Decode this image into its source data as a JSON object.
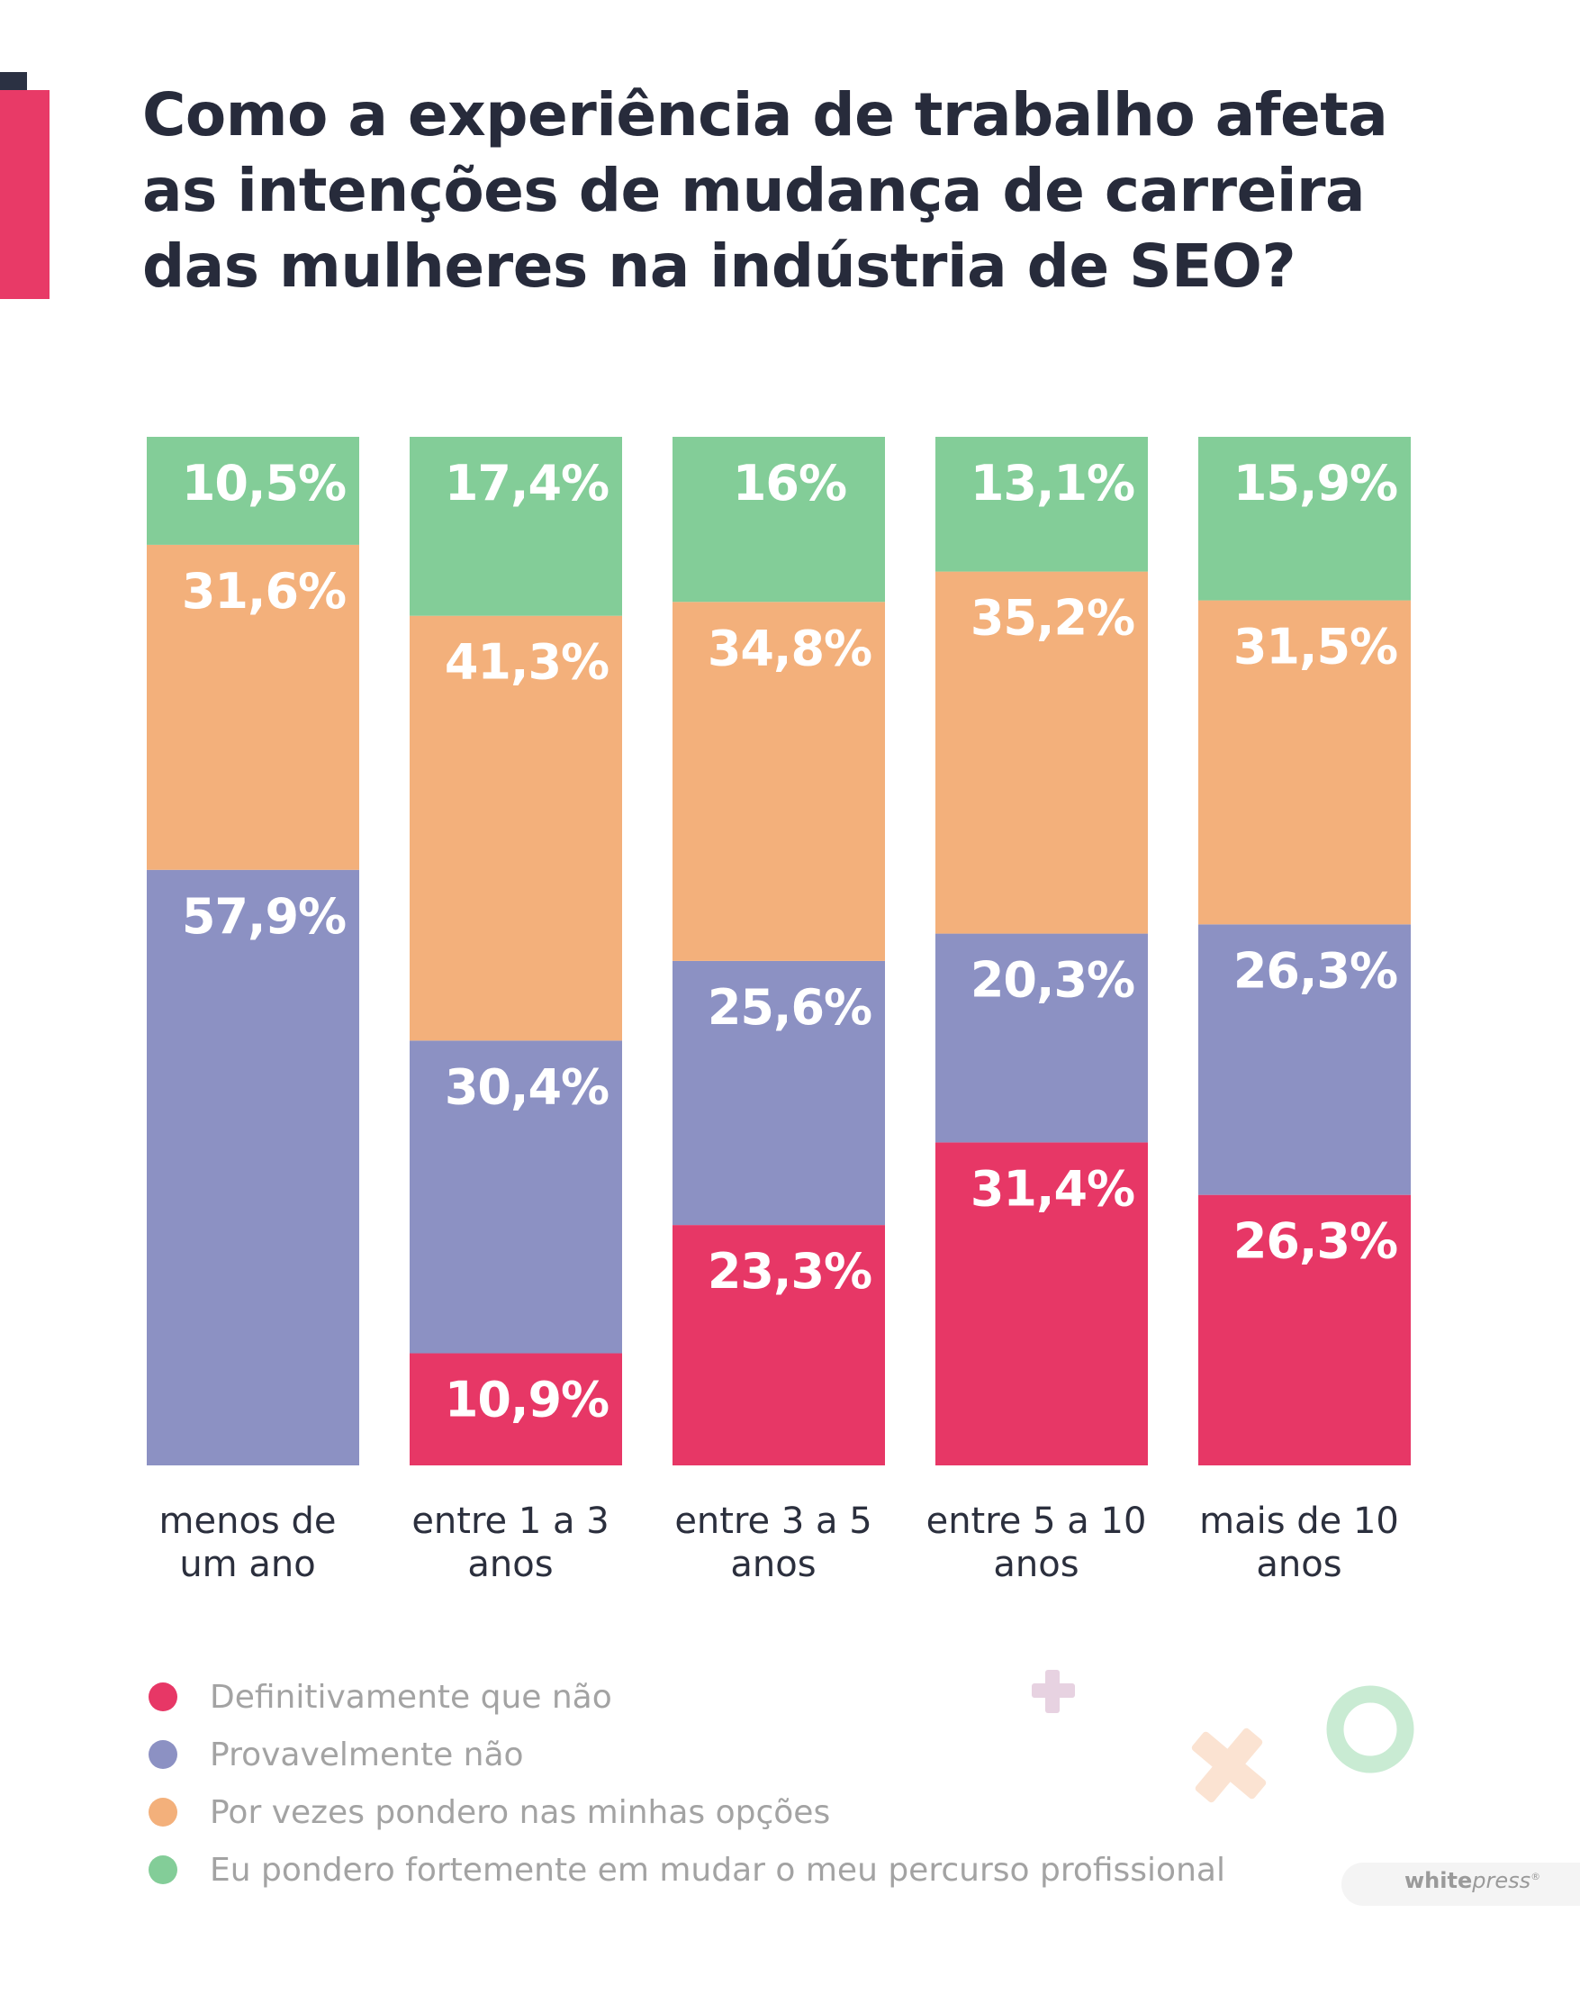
{
  "title_lines": [
    "Como a experiência de trabalho afeta",
    "as intenções de mudança de carreira",
    "das mulheres na indústria de SEO?"
  ],
  "colors": {
    "definitivamente": "#e73766",
    "provavelmente": "#8c91c3",
    "por_vezes": "#f3b07b",
    "fortemente": "#83cd98"
  },
  "legend": [
    {
      "label": "Definitivamente que não",
      "color": "#e73766"
    },
    {
      "label": "Provavelmente não",
      "color": "#8c91c3"
    },
    {
      "label": "Por vezes pondero nas minhas opções",
      "color": "#f3b07b"
    },
    {
      "label": "Eu pondero fortemente em mudar o meu percurso profissional",
      "color": "#83cd98"
    }
  ],
  "brand": {
    "bold": "white",
    "italic": "press",
    "mark": "®"
  },
  "chart_data": {
    "type": "bar",
    "stacked": true,
    "title": "Como a experiência de trabalho afeta as intenções de mudança de carreira das mulheres na indústria de SEO?",
    "categories": [
      [
        "menos de",
        "um ano"
      ],
      [
        "entre 1 a 3",
        "anos"
      ],
      [
        "entre 3 a 5",
        "anos"
      ],
      [
        "entre 5 a 10",
        "anos"
      ],
      [
        "mais de 10",
        "anos"
      ]
    ],
    "series": [
      {
        "name": "Definitivamente que não",
        "color": "#e73766",
        "values": [
          null,
          10.9,
          23.3,
          31.4,
          26.3
        ],
        "labels": [
          "",
          "10,9%",
          "23,3%",
          "31,4%",
          "26,3%"
        ]
      },
      {
        "name": "Provavelmente não",
        "color": "#8c91c3",
        "values": [
          57.9,
          30.4,
          25.6,
          20.3,
          26.3
        ],
        "labels": [
          "57,9%",
          "30,4%",
          "25,6%",
          "20,3%",
          "26,3%"
        ]
      },
      {
        "name": "Por vezes pondero nas minhas opções",
        "color": "#f3b07b",
        "values": [
          31.6,
          41.3,
          34.8,
          35.2,
          31.5
        ],
        "labels": [
          "31,6%",
          "41,3%",
          "34,8%",
          "35,2%",
          "31,5%"
        ]
      },
      {
        "name": "Eu pondero fortemente em mudar o meu percurso profissional",
        "color": "#83cd98",
        "values": [
          10.5,
          17.4,
          16,
          13.1,
          15.9
        ],
        "labels": [
          "10,5%",
          "17,4%",
          "16%",
          "13,1%",
          "15,9%"
        ]
      }
    ],
    "ylim": [
      0,
      100
    ],
    "xlabel": "",
    "ylabel": "",
    "legend_position": "bottom-left"
  }
}
